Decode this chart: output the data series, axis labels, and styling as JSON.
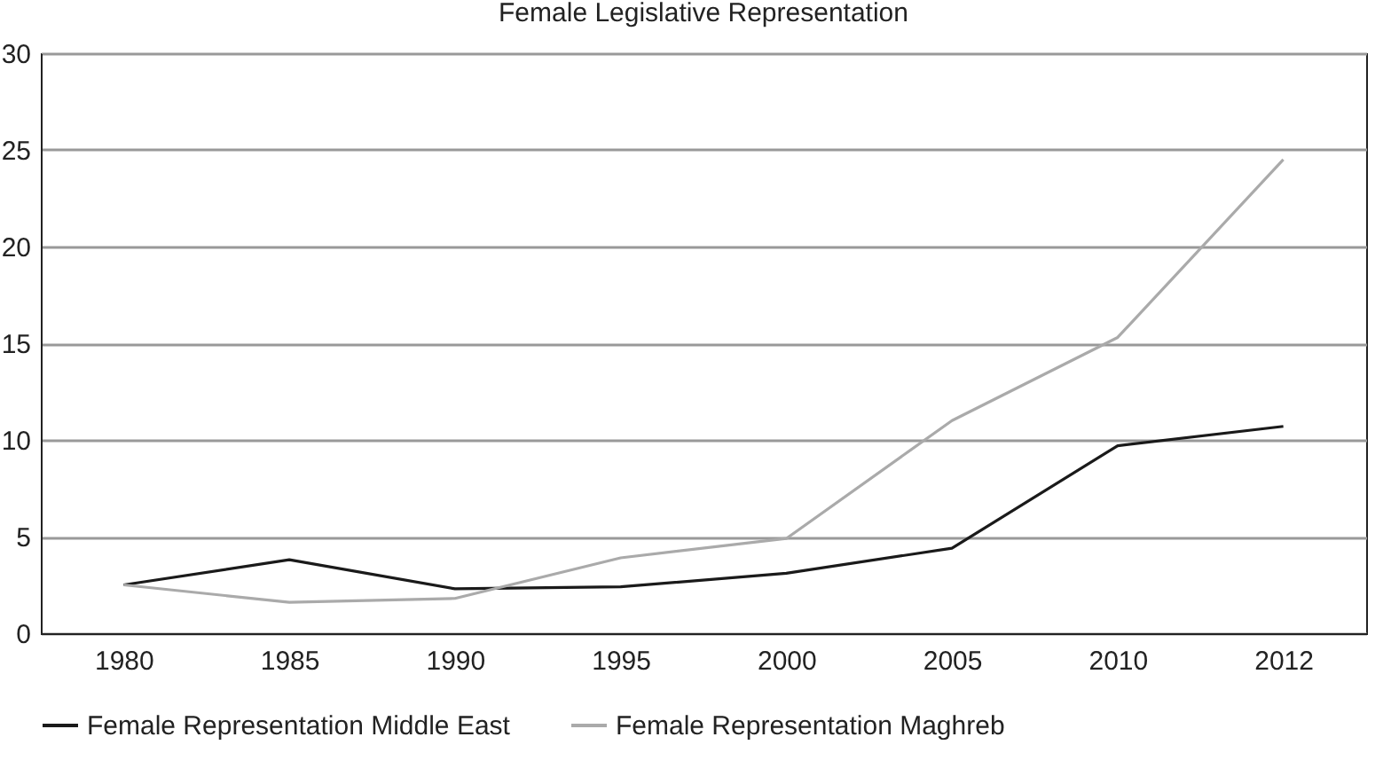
{
  "chart_data": {
    "type": "line",
    "title": "Female Legislative Representation",
    "categories": [
      "1980",
      "1985",
      "1990",
      "1995",
      "2000",
      "2005",
      "2010",
      "2012"
    ],
    "series": [
      {
        "name": "Female Representation Middle East",
        "color": "#1a1a1a",
        "values": [
          2.5,
          3.8,
          2.3,
          2.4,
          3.1,
          4.4,
          9.7,
          10.7
        ]
      },
      {
        "name": "Female Representation Maghreb",
        "color": "#aaaaaa",
        "values": [
          2.5,
          1.6,
          1.8,
          3.9,
          4.9,
          11.0,
          15.3,
          24.5
        ]
      }
    ],
    "ylim": [
      0,
      30
    ],
    "yticks": [
      0,
      5,
      10,
      15,
      20,
      25,
      30
    ],
    "grid": "y",
    "legend": "bottom",
    "marker": "none",
    "line_style": "solid"
  }
}
